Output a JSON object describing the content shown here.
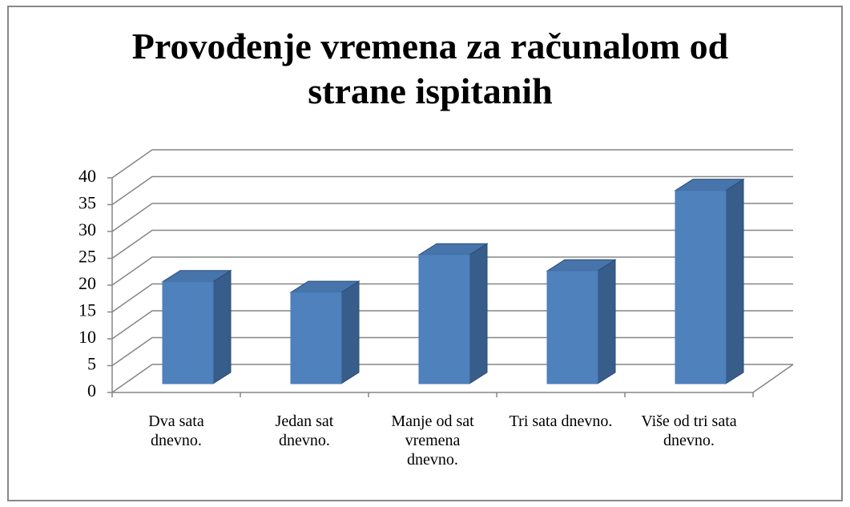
{
  "chart_data": {
    "type": "bar3d",
    "title": "Provođenje vremena za računalom od strane ispitanih",
    "categories": [
      "Dva sata dnevno.",
      "Jedan sat dnevno.",
      "Manje od sat vremena dnevno.",
      "Tri sata dnevno.",
      "Više od tri sata dnevno."
    ],
    "values": [
      19,
      17,
      24,
      21,
      36
    ],
    "color": "#4f81bd",
    "ylim": [
      0,
      40
    ],
    "yticks": [
      0,
      5,
      10,
      15,
      20,
      25,
      30,
      35,
      40
    ],
    "grid": true
  }
}
